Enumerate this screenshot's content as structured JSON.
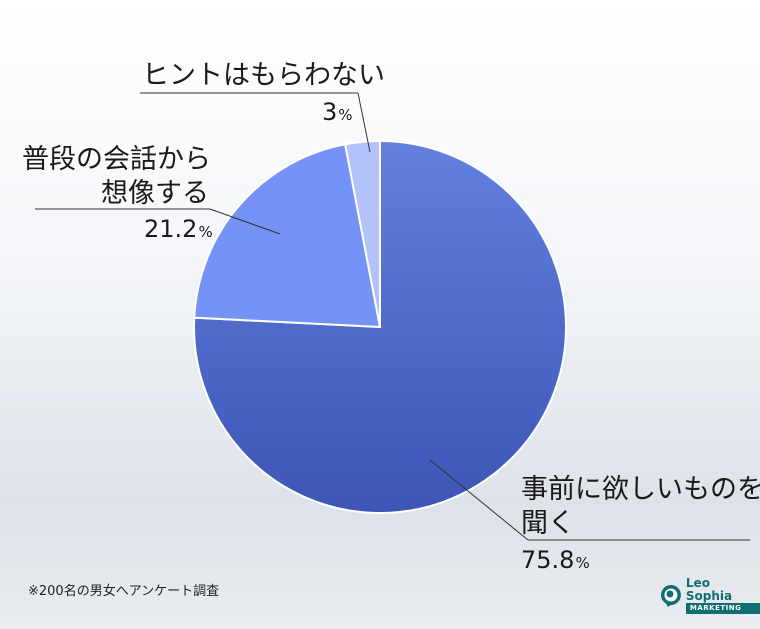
{
  "chart_data": {
    "type": "pie",
    "slices": [
      {
        "label": "事前に欲しいものを聞く",
        "label_lines": [
          "事前に欲しいものを",
          "聞く"
        ],
        "value": 75.8,
        "color": "#4a66c8"
      },
      {
        "label": "普段の会話から想像する",
        "label_lines": [
          "普段の会話から",
          "想像する"
        ],
        "value": 21.2,
        "color": "#7592f7"
      },
      {
        "label": "ヒントはもらわない",
        "label_lines": [
          "ヒントはもらわない"
        ],
        "value": 3,
        "color": "#b3c2fb"
      }
    ],
    "value_unit": "%",
    "start_angle": "12 o'clock",
    "direction": "clockwise",
    "legend": "none"
  },
  "labels": {
    "slice0": {
      "line1": "事前に欲しいものを",
      "line2": "聞く",
      "value": "75.8",
      "unit": "%"
    },
    "slice1": {
      "line1": "普段の会話から",
      "line2": "想像する",
      "value": "21.2",
      "unit": "%"
    },
    "slice2": {
      "line1": "ヒントはもらわない",
      "value": "3",
      "unit": "%"
    }
  },
  "footnote": "※200名の男女へアンケート調査",
  "logo": {
    "name": "Leo Sophia",
    "tagline": "MARKETING",
    "color": "#0e6e72"
  }
}
